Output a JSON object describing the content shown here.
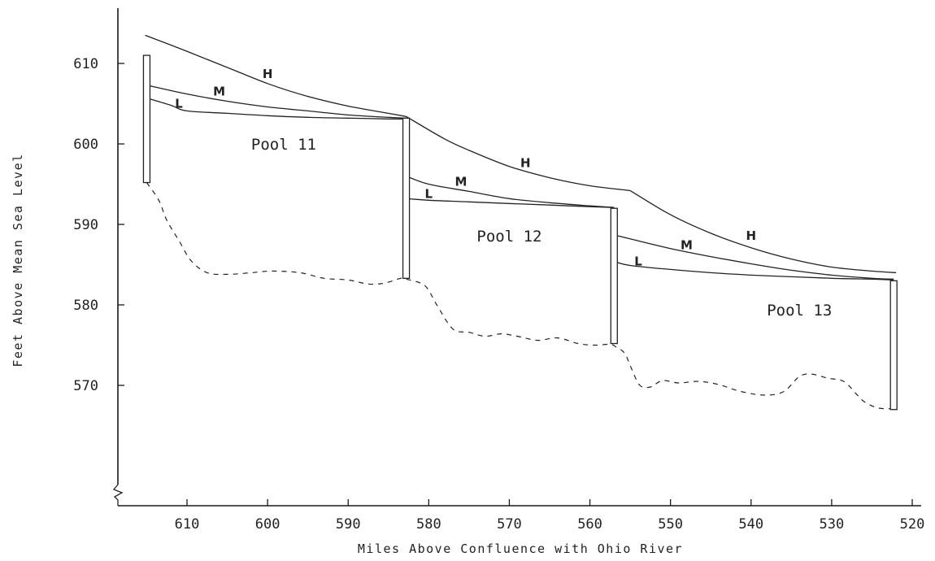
{
  "chart_data": {
    "type": "line",
    "title": "",
    "xlabel": "Miles Above Confluence with Ohio River",
    "ylabel": "Feet Above Mean Sea Level",
    "xlim": [
      619,
      520
    ],
    "ylim": [
      560,
      616
    ],
    "x_reversed": true,
    "y_axis_break": true,
    "grid": false,
    "x_ticks": [
      {
        "value": 610,
        "label": "610"
      },
      {
        "value": 600,
        "label": "600"
      },
      {
        "value": 590,
        "label": "590"
      },
      {
        "value": 580,
        "label": "580"
      },
      {
        "value": 570,
        "label": "570"
      },
      {
        "value": 560,
        "label": "560"
      },
      {
        "value": 550,
        "label": "550"
      },
      {
        "value": 540,
        "label": "540"
      },
      {
        "value": 530,
        "label": "530"
      },
      {
        "value": 520,
        "label": "520"
      }
    ],
    "y_ticks": [
      {
        "value": 610,
        "label": "610"
      },
      {
        "value": 600,
        "label": "600"
      },
      {
        "value": 590,
        "label": "590"
      },
      {
        "value": 580,
        "label": "580"
      },
      {
        "value": 570,
        "label": "570"
      }
    ],
    "dams": [
      {
        "x": 615,
        "top": 611,
        "bottom": 595.2
      },
      {
        "x": 582.8,
        "top": 603.2,
        "bottom": 583.3
      },
      {
        "x": 557,
        "top": 592,
        "bottom": 575.2
      },
      {
        "x": 522.3,
        "top": 583,
        "bottom": 567
      }
    ],
    "pools": [
      {
        "name": "Pool 11",
        "label_at": [
          598,
          599.3
        ],
        "series": [
          {
            "name": "H",
            "label_at": [
              600,
              608.2
            ],
            "x": [
              615.2,
              610,
              605,
              600,
              595,
              590,
              585,
              582.8
            ],
            "y": [
              613.5,
              611.5,
              609.5,
              607.5,
              605.9,
              604.7,
              603.8,
              603.4
            ]
          },
          {
            "name": "M",
            "label_at": [
              606,
              606.0
            ],
            "x": [
              615,
              610,
              605,
              600,
              595,
              590,
              585,
              582.8
            ],
            "y": [
              607.3,
              606.2,
              605.3,
              604.6,
              604.1,
              603.6,
              603.3,
              603.2
            ]
          },
          {
            "name": "L",
            "label_at": [
              611,
              604.5
            ],
            "x": [
              615,
              612,
              610,
              605,
              600,
              595,
              590,
              585,
              582.8
            ],
            "y": [
              605.7,
              604.8,
              604.1,
              603.8,
              603.5,
              603.3,
              603.2,
              603.1,
              603.1
            ]
          }
        ]
      },
      {
        "name": "Pool 12",
        "label_at": [
          570,
          587.9
        ],
        "series": [
          {
            "name": "H",
            "label_at": [
              568,
              597.1
            ],
            "x": [
              582.8,
              578,
              575,
              570,
              565,
              560,
              555
            ],
            "y": [
              603.4,
              600.6,
              599.2,
              597.2,
              595.8,
              594.8,
              594.2
            ]
          },
          {
            "name": "M",
            "label_at": [
              576,
              594.8
            ],
            "x": [
              582.8,
              580,
              575,
              570,
              565,
              560,
              557
            ],
            "y": [
              596,
              595.0,
              594.1,
              593.2,
              592.7,
              592.3,
              592.1
            ]
          },
          {
            "name": "L",
            "label_at": [
              580,
              593.3
            ],
            "x": [
              582.8,
              580,
              575,
              570,
              565,
              560,
              557
            ],
            "y": [
              593.2,
              593.0,
              592.8,
              592.6,
              592.4,
              592.2,
              592.1
            ]
          }
        ]
      },
      {
        "name": "Pool 13",
        "label_at": [
          534,
          578.7
        ],
        "series": [
          {
            "name": "H",
            "label_at": [
              540,
              588.1
            ],
            "x": [
              555,
              550,
              545,
              540,
              535,
              530,
              525,
              522
            ],
            "y": [
              594.2,
              591.2,
              588.9,
              587.1,
              585.7,
              584.7,
              584.2,
              584.0
            ]
          },
          {
            "name": "M",
            "label_at": [
              548,
              586.9
            ],
            "x": [
              557,
              555,
              550,
              545,
              540,
              535,
              530,
              525,
              522.3
            ],
            "y": [
              588.7,
              588.2,
              587.0,
              586.0,
              585.1,
              584.3,
              583.7,
              583.3,
              583.2
            ]
          },
          {
            "name": "L",
            "label_at": [
              554,
              584.9
            ],
            "x": [
              557,
              555,
              550,
              545,
              540,
              535,
              530,
              525,
              522.3
            ],
            "y": [
              585.4,
              584.9,
              584.4,
              584.0,
              583.7,
              583.5,
              583.3,
              583.2,
              583.1
            ]
          }
        ]
      }
    ],
    "riverbed": {
      "style": "dashed",
      "x": [
        615,
        613.5,
        612.5,
        611,
        609.5,
        607.5,
        605,
        602,
        599.5,
        596,
        593,
        590,
        587.5,
        585.5,
        583.5,
        582.8,
        580.5,
        579,
        577,
        575,
        573,
        571,
        569,
        566.5,
        564,
        561.5,
        559.5,
        557.5,
        556.8,
        555.7,
        554.8,
        553.8,
        552.5,
        551,
        549,
        546.5,
        544,
        541.5,
        538.5,
        536,
        534,
        532.5,
        530.5,
        528.5,
        527,
        526,
        524.3,
        522.5
      ],
      "y": [
        595.2,
        593,
        590.5,
        588,
        585.5,
        584,
        583.8,
        584,
        584.2,
        584,
        583.3,
        583.1,
        582.6,
        582.7,
        583.3,
        583.2,
        582.4,
        580,
        577,
        576.6,
        576.1,
        576.4,
        576.1,
        575.6,
        575.9,
        575.2,
        575,
        575.1,
        574.8,
        574,
        572,
        570,
        569.8,
        570.6,
        570.3,
        570.5,
        570.1,
        569.3,
        568.8,
        569.2,
        571.1,
        571.4,
        570.9,
        570.5,
        569,
        568,
        567.2,
        567.1
      ]
    }
  }
}
